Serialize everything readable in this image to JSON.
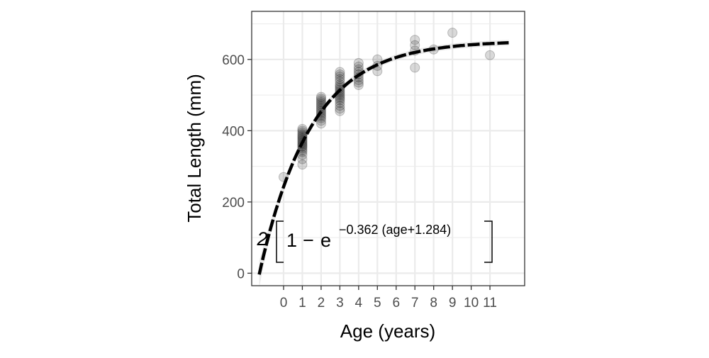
{
  "chart_data": {
    "type": "scatter",
    "title": "",
    "xlabel": "Age (years)",
    "ylabel": "Total Length (mm)",
    "xlim": [
      -1.7,
      12.85
    ],
    "ylim": [
      -35,
      735
    ],
    "x_ticks": [
      0,
      1,
      2,
      3,
      4,
      5,
      6,
      7,
      8,
      9,
      10,
      11
    ],
    "x_tick_labels": [
      "0",
      "1",
      "2",
      "3",
      "4",
      "5",
      "6",
      "7",
      "8",
      "9",
      "10",
      "11"
    ],
    "y_ticks": [
      0,
      200,
      400,
      600
    ],
    "y_tick_labels": [
      "0",
      "200",
      "400",
      "600"
    ],
    "grid": true,
    "legend": "none",
    "point_color": "#000000",
    "point_opacity": 0.15,
    "line_color": "#000000",
    "band_color": "#d9d9d9",
    "model": {
      "Linf": 652.2,
      "K": 0.362,
      "t0": -1.284
    },
    "fit_range": [
      -1.3,
      12.0
    ],
    "equation": {
      "prefix": "2",
      "one": "1",
      "minus": "−",
      "e": "e",
      "exponent": "−0.362 (age+1.284)"
    },
    "points": [
      {
        "x": 0,
        "y": 270
      },
      {
        "x": 1,
        "y": 305
      },
      {
        "x": 1,
        "y": 320
      },
      {
        "x": 1,
        "y": 332
      },
      {
        "x": 1,
        "y": 340
      },
      {
        "x": 1,
        "y": 345
      },
      {
        "x": 1,
        "y": 350
      },
      {
        "x": 1,
        "y": 355
      },
      {
        "x": 1,
        "y": 358
      },
      {
        "x": 1,
        "y": 362
      },
      {
        "x": 1,
        "y": 366
      },
      {
        "x": 1,
        "y": 370
      },
      {
        "x": 1,
        "y": 374
      },
      {
        "x": 1,
        "y": 378
      },
      {
        "x": 1,
        "y": 382
      },
      {
        "x": 1,
        "y": 386
      },
      {
        "x": 1,
        "y": 390
      },
      {
        "x": 1,
        "y": 395
      },
      {
        "x": 1,
        "y": 400
      },
      {
        "x": 1,
        "y": 405
      },
      {
        "x": 2,
        "y": 420
      },
      {
        "x": 2,
        "y": 428
      },
      {
        "x": 2,
        "y": 435
      },
      {
        "x": 2,
        "y": 440
      },
      {
        "x": 2,
        "y": 445
      },
      {
        "x": 2,
        "y": 450
      },
      {
        "x": 2,
        "y": 455
      },
      {
        "x": 2,
        "y": 460
      },
      {
        "x": 2,
        "y": 465
      },
      {
        "x": 2,
        "y": 470
      },
      {
        "x": 2,
        "y": 475
      },
      {
        "x": 2,
        "y": 480
      },
      {
        "x": 2,
        "y": 485
      },
      {
        "x": 2,
        "y": 490
      },
      {
        "x": 2,
        "y": 495
      },
      {
        "x": 3,
        "y": 455
      },
      {
        "x": 3,
        "y": 462
      },
      {
        "x": 3,
        "y": 470
      },
      {
        "x": 3,
        "y": 478
      },
      {
        "x": 3,
        "y": 485
      },
      {
        "x": 3,
        "y": 490
      },
      {
        "x": 3,
        "y": 495
      },
      {
        "x": 3,
        "y": 500
      },
      {
        "x": 3,
        "y": 505
      },
      {
        "x": 3,
        "y": 510
      },
      {
        "x": 3,
        "y": 515
      },
      {
        "x": 3,
        "y": 520
      },
      {
        "x": 3,
        "y": 525
      },
      {
        "x": 3,
        "y": 530
      },
      {
        "x": 3,
        "y": 538
      },
      {
        "x": 3,
        "y": 545
      },
      {
        "x": 3,
        "y": 552
      },
      {
        "x": 3,
        "y": 558
      },
      {
        "x": 3,
        "y": 565
      },
      {
        "x": 4,
        "y": 528
      },
      {
        "x": 4,
        "y": 535
      },
      {
        "x": 4,
        "y": 542
      },
      {
        "x": 4,
        "y": 550
      },
      {
        "x": 4,
        "y": 558
      },
      {
        "x": 4,
        "y": 565
      },
      {
        "x": 4,
        "y": 572
      },
      {
        "x": 4,
        "y": 580
      },
      {
        "x": 4,
        "y": 590
      },
      {
        "x": 5,
        "y": 567
      },
      {
        "x": 5,
        "y": 582
      },
      {
        "x": 5,
        "y": 600
      },
      {
        "x": 7,
        "y": 577
      },
      {
        "x": 7,
        "y": 625
      },
      {
        "x": 7,
        "y": 640
      },
      {
        "x": 7,
        "y": 655
      },
      {
        "x": 8,
        "y": 628
      },
      {
        "x": 9,
        "y": 675
      },
      {
        "x": 11,
        "y": 612
      }
    ]
  }
}
